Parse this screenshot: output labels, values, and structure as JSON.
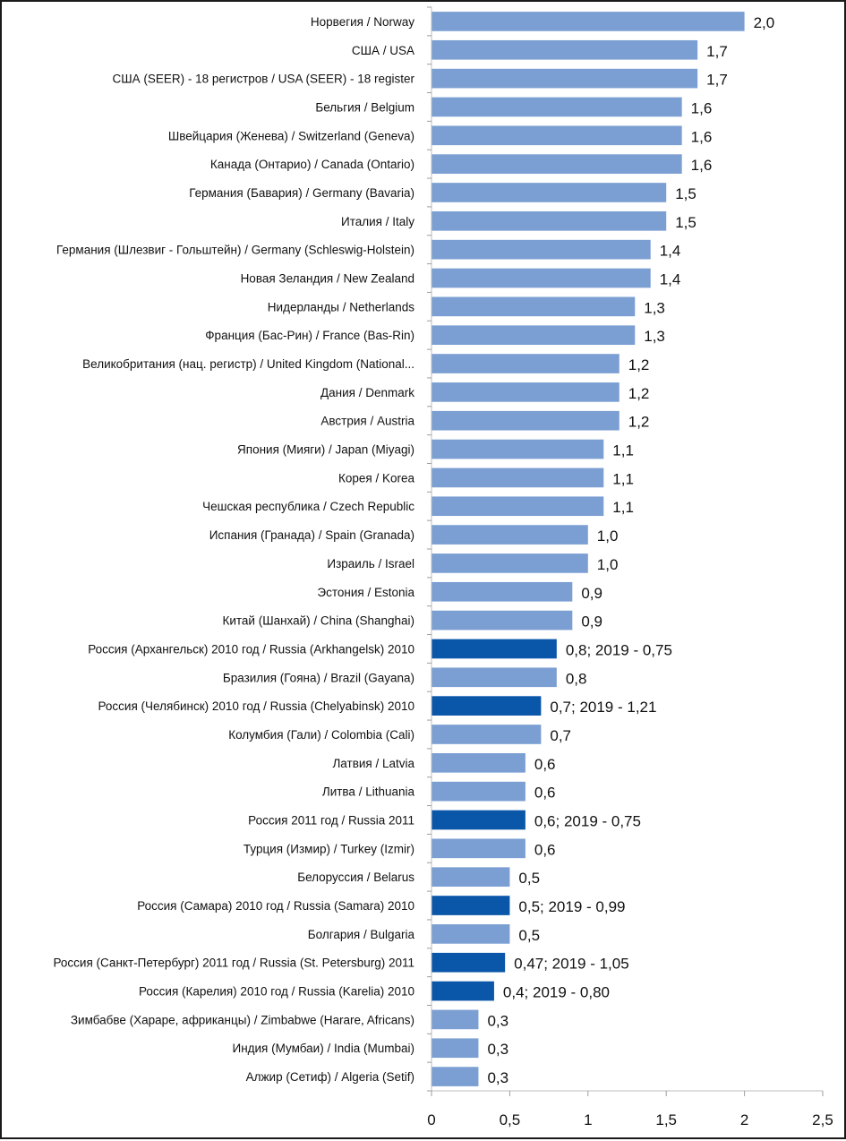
{
  "chart_data": {
    "type": "bar",
    "orientation": "horizontal",
    "title": "",
    "xlabel": "",
    "ylabel": "",
    "xlim": [
      0,
      2.5
    ],
    "x_ticks": [
      "0",
      "0,5",
      "1",
      "1,5",
      "2",
      "2,5"
    ],
    "x_tick_values": [
      0,
      0.5,
      1,
      1.5,
      2,
      2.5
    ],
    "grid": false,
    "legend": "none",
    "colors": {
      "default": "#7B9FD2",
      "highlight": "#0A56A8"
    },
    "categories": [
      "Норвегия / Norway",
      "США / USA",
      "США (SEER) - 18 регистров / USA (SEER) - 18 register",
      "Бельгия / Belgium",
      "Швейцария (Женева) / Switzerland (Geneva)",
      "Канада (Онтарио) / Canada (Ontario)",
      "Германия (Бавария) / Germany (Bavaria)",
      "Италия / Italy",
      "Германия (Шлезвиг - Гольштейн) / Germany (Schleswig-Holstein)",
      "Новая Зеландия / New Zealand",
      "Нидерланды / Netherlands",
      "Франция (Бас-Рин) / France (Bas-Rin)",
      "Великобритания (нац. регистр) / United Kingdom (National...",
      "Дания / Denmark",
      "Австрия / Austria",
      "Япония (Мияги) / Japan (Miyagi)",
      "Корея / Korea",
      "Чешская республика / Czech Republic",
      "Испания (Гранада) / Spain (Granada)",
      "Израиль / Israel",
      "Эстония / Estonia",
      "Китай (Шанхай) / China (Shanghai)",
      "Россия (Архангельск) 2010 год / Russia (Arkhangelsk) 2010",
      "Бразилия (Гояна) / Brazil (Gayana)",
      "Россия (Челябинск) 2010 год / Russia (Chelyabinsk) 2010",
      "Колумбия (Гали) / Colombia (Cali)",
      "Латвия / Latvia",
      "Литва / Lithuania",
      "Россия 2011 год / Russia 2011",
      "Турция (Измир) / Turkey (Izmir)",
      "Белоруссия / Belarus",
      "Россия (Самара) 2010 год / Russia (Samara) 2010",
      "Болгария / Bulgaria",
      "Россия (Санкт-Петербург) 2011 год / Russia (St. Petersburg) 2011",
      "Россия (Карелия) 2010 год / Russia (Karelia) 2010",
      "Зимбабве (Хараре, африканцы) / Zimbabwe (Harare, Africans)",
      "Индия (Мумбаи) / India (Mumbai)",
      "Алжир (Сетиф) / Algeria (Setif)"
    ],
    "values": [
      2.0,
      1.7,
      1.7,
      1.6,
      1.6,
      1.6,
      1.5,
      1.5,
      1.4,
      1.4,
      1.3,
      1.3,
      1.2,
      1.2,
      1.2,
      1.1,
      1.1,
      1.1,
      1.0,
      1.0,
      0.9,
      0.9,
      0.8,
      0.8,
      0.7,
      0.7,
      0.6,
      0.6,
      0.6,
      0.6,
      0.5,
      0.5,
      0.5,
      0.47,
      0.4,
      0.3,
      0.3,
      0.3
    ],
    "data_labels": [
      "2,0",
      "1,7",
      "1,7",
      "1,6",
      "1,6",
      "1,6",
      "1,5",
      "1,5",
      "1,4",
      "1,4",
      "1,3",
      "1,3",
      "1,2",
      "1,2",
      "1,2",
      "1,1",
      "1,1",
      "1,1",
      "1,0",
      "1,0",
      "0,9",
      "0,9",
      "0,8; 2019 - 0,75",
      "0,8",
      "0,7; 2019 - 1,21",
      "0,7",
      "0,6",
      "0,6",
      "0,6; 2019 - 0,75",
      "0,6",
      "0,5",
      "0,5; 2019 - 0,99",
      "0,5",
      "0,47; 2019 - 1,05",
      "0,4; 2019 - 0,80",
      "0,3",
      "0,3",
      "0,3"
    ],
    "highlighted": [
      false,
      false,
      false,
      false,
      false,
      false,
      false,
      false,
      false,
      false,
      false,
      false,
      false,
      false,
      false,
      false,
      false,
      false,
      false,
      false,
      false,
      false,
      true,
      false,
      true,
      false,
      false,
      false,
      true,
      false,
      false,
      true,
      false,
      true,
      true,
      false,
      false,
      false
    ]
  }
}
